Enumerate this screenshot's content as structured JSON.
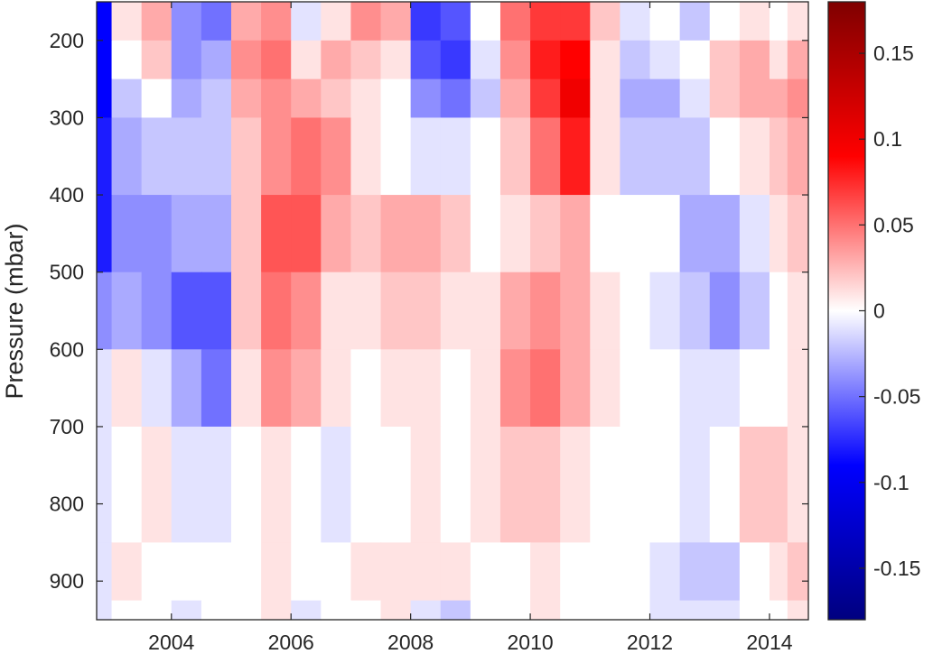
{
  "chart_data": {
    "type": "heatmap",
    "title": "",
    "xlabel": "",
    "ylabel": "Pressure (mbar)",
    "xlim": [
      2002.75,
      2014.65
    ],
    "ylim": [
      950,
      150
    ],
    "y_reversed": true,
    "x_ticks": [
      2004,
      2006,
      2008,
      2010,
      2012,
      2014
    ],
    "y_ticks": [
      200,
      300,
      400,
      500,
      600,
      700,
      800,
      900
    ],
    "colorbar": {
      "colormap": "blue-white-red",
      "clim": [
        -0.18,
        0.18
      ],
      "ticks": [
        -0.15,
        -0.1,
        -0.05,
        0,
        0.05,
        0.1,
        0.15
      ],
      "tick_labels": [
        "-0.15",
        "-0.1",
        "-0.05",
        "0",
        "0.05",
        "0.1",
        "0.15"
      ]
    },
    "pressure_levels": [
      {
        "top": 150,
        "bottom": 200
      },
      {
        "top": 200,
        "bottom": 250
      },
      {
        "top": 250,
        "bottom": 300
      },
      {
        "top": 300,
        "bottom": 400
      },
      {
        "top": 400,
        "bottom": 500
      },
      {
        "top": 500,
        "bottom": 600
      },
      {
        "top": 600,
        "bottom": 700
      },
      {
        "top": 700,
        "bottom": 850
      },
      {
        "top": 850,
        "bottom": 925
      },
      {
        "top": 925,
        "bottom": 950
      }
    ],
    "columns": [
      2002.75,
      2003.0,
      2003.5,
      2004.0,
      2004.5,
      2005.0,
      2005.5,
      2006.0,
      2006.5,
      2007.0,
      2007.5,
      2008.0,
      2008.5,
      2009.0,
      2009.5,
      2010.0,
      2010.5,
      2011.0,
      2011.5,
      2012.0,
      2012.5,
      2013.0,
      2013.5,
      2014.0,
      2014.3,
      2014.65
    ],
    "values": [
      [
        -0.09,
        0.01,
        0.03,
        -0.04,
        -0.05,
        0.03,
        0.04,
        -0.01,
        0.01,
        0.04,
        0.03,
        -0.07,
        -0.06,
        0.0,
        0.05,
        0.07,
        0.07,
        0.02,
        -0.01,
        0.0,
        -0.02,
        0.0,
        0.01,
        0.0,
        0.01
      ],
      [
        -0.09,
        0.0,
        0.02,
        -0.04,
        -0.03,
        0.04,
        0.05,
        0.01,
        0.03,
        0.02,
        0.01,
        -0.06,
        -0.07,
        -0.01,
        0.04,
        0.08,
        0.09,
        0.01,
        -0.02,
        -0.01,
        0.0,
        0.02,
        0.03,
        0.01,
        0.03
      ],
      [
        -0.09,
        -0.02,
        0.0,
        -0.03,
        -0.02,
        0.03,
        0.04,
        0.03,
        0.02,
        0.01,
        0.0,
        -0.04,
        -0.05,
        -0.02,
        0.03,
        0.07,
        0.1,
        0.01,
        -0.03,
        -0.03,
        -0.01,
        0.02,
        0.03,
        0.03,
        0.04
      ],
      [
        -0.08,
        -0.03,
        -0.02,
        -0.02,
        -0.02,
        0.02,
        0.04,
        0.05,
        0.04,
        0.01,
        0.0,
        -0.01,
        -0.01,
        0.0,
        0.02,
        0.05,
        0.08,
        0.01,
        -0.02,
        -0.02,
        -0.02,
        0.0,
        0.01,
        0.02,
        0.03
      ],
      [
        -0.08,
        -0.04,
        -0.04,
        -0.03,
        -0.03,
        0.02,
        0.06,
        0.06,
        0.03,
        0.02,
        0.03,
        0.03,
        0.02,
        0.0,
        0.01,
        0.02,
        0.03,
        0.0,
        0.0,
        0.0,
        -0.03,
        -0.03,
        -0.01,
        0.01,
        0.02
      ],
      [
        -0.04,
        -0.03,
        -0.04,
        -0.06,
        -0.06,
        0.02,
        0.05,
        0.04,
        0.01,
        0.01,
        0.02,
        0.02,
        0.01,
        0.01,
        0.03,
        0.04,
        0.03,
        0.01,
        0.0,
        -0.01,
        -0.02,
        -0.04,
        -0.02,
        0.0,
        0.01
      ],
      [
        -0.01,
        0.01,
        -0.01,
        -0.03,
        -0.05,
        0.01,
        0.04,
        0.03,
        0.01,
        0.0,
        0.01,
        0.01,
        0.0,
        0.01,
        0.04,
        0.05,
        0.03,
        0.01,
        0.0,
        0.0,
        -0.01,
        -0.01,
        0.0,
        0.0,
        0.01
      ],
      [
        -0.01,
        0.0,
        0.01,
        -0.01,
        -0.01,
        0.0,
        0.01,
        0.0,
        -0.01,
        0.0,
        0.0,
        0.01,
        0.0,
        0.01,
        0.02,
        0.02,
        0.01,
        0.0,
        0.0,
        0.0,
        -0.01,
        0.0,
        0.02,
        0.02,
        0.01
      ],
      [
        -0.01,
        0.01,
        0.0,
        0.0,
        0.0,
        0.0,
        0.01,
        0.0,
        0.0,
        0.01,
        0.01,
        0.01,
        0.01,
        0.0,
        0.0,
        0.01,
        0.0,
        0.0,
        0.0,
        -0.01,
        -0.02,
        -0.02,
        0.0,
        0.01,
        0.02
      ],
      [
        -0.01,
        0.0,
        0.0,
        -0.01,
        0.0,
        0.0,
        0.01,
        -0.01,
        0.0,
        0.0,
        0.01,
        -0.01,
        -0.02,
        0.0,
        0.0,
        0.01,
        0.0,
        0.0,
        0.0,
        -0.01,
        -0.01,
        -0.01,
        0.0,
        0.0,
        0.01
      ]
    ]
  }
}
